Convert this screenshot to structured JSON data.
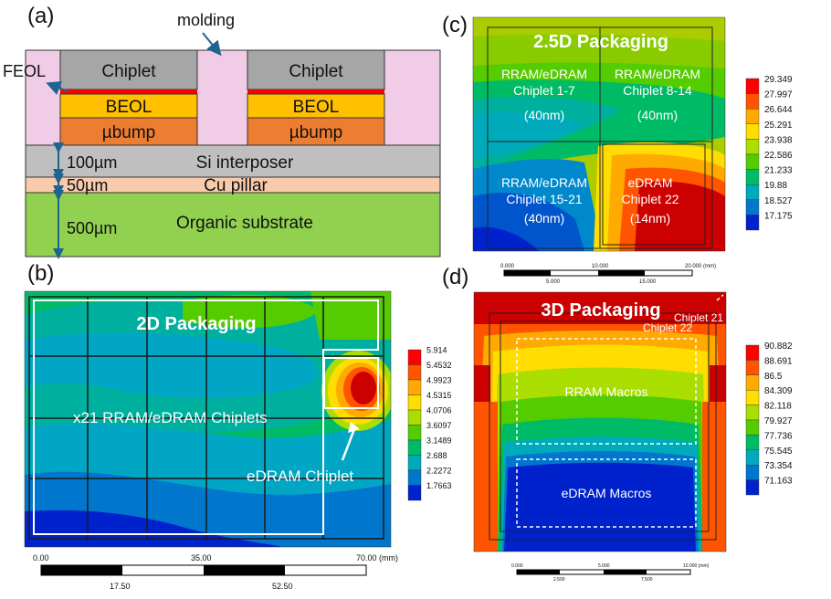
{
  "panels": {
    "a": {
      "label": "(a)",
      "molding": "molding",
      "feol": "FEOL",
      "chiplet": "Chiplet",
      "beol": "BEOL",
      "ubump": "µbump",
      "si_interposer": "Si interposer",
      "cu_pillar": "Cu pillar",
      "organic_substrate": "Organic substrate",
      "dim_interposer": "100µm",
      "dim_pillar": "50µm",
      "dim_substrate": "500µm",
      "colors": {
        "molding": "#f0cce6",
        "chiplet": "#a6a6a6",
        "beol_line": "#ff0000",
        "beol": "#ffc000",
        "ubump": "#ed7d31",
        "interposer": "#bfbfbf",
        "pillar": "#f8cbad",
        "substrate": "#92d050",
        "arrow": "#1f6391"
      }
    },
    "b": {
      "label": "(b)",
      "title": "2D Packaging",
      "chiplets_text": "x21 RRAM/eDRAM Chiplets",
      "edram_text": "eDRAM Chiplet",
      "legend_values": [
        "5.914",
        "5.4532",
        "4.9923",
        "4.5315",
        "4.0706",
        "3.6097",
        "3.1489",
        "2.688",
        "2.2272",
        "1.7663"
      ],
      "scale_top": [
        "0.00",
        "35.00",
        "70.00 (mm)"
      ],
      "scale_bottom": [
        "17.50",
        "52.50"
      ]
    },
    "c": {
      "label": "(c)",
      "title": "2.5D Packaging",
      "blocks": [
        {
          "line1": "RRAM/eDRAM",
          "line2": "Chiplet 1-7",
          "line3": "(40nm)"
        },
        {
          "line1": "RRAM/eDRAM",
          "line2": "Chiplet 8-14",
          "line3": "(40nm)"
        },
        {
          "line1": "RRAM/eDRAM",
          "line2": "Chiplet 15-21",
          "line3": "(40nm)"
        },
        {
          "line1": "eDRAM",
          "line2": "Chiplet 22",
          "line3": "(14nm)"
        }
      ],
      "legend_values": [
        "29.349",
        "27.997",
        "26.644",
        "25.291",
        "23.938",
        "22.586",
        "21.233",
        "19.88",
        "18.527",
        "17.175"
      ],
      "scale_top": [
        "0.000",
        "10.000",
        "20.000 (mm)"
      ],
      "scale_bottom": [
        "5.000",
        "15.000"
      ]
    },
    "d": {
      "label": "(d)",
      "title": "3D Packaging",
      "chiplet21": "Chiplet 21",
      "chiplet22": "Chiplet 22",
      "rram": "RRAM Macros",
      "edram": "eDRAM Macros",
      "legend_values": [
        "90.882",
        "88.691",
        "86.5",
        "84.309",
        "82.118",
        "79.927",
        "77.736",
        "75.545",
        "73.354",
        "71.163"
      ],
      "scale_top": [
        "0.000",
        "5.000",
        "10.000 (mm)"
      ],
      "scale_bottom": [
        "2.500",
        "7.500"
      ]
    }
  },
  "legend_colors": [
    "#ff0000",
    "#ff5500",
    "#ffaa00",
    "#ffdd00",
    "#aadd00",
    "#55cc00",
    "#00bb66",
    "#00aabb",
    "#0077cc",
    "#0022cc"
  ]
}
